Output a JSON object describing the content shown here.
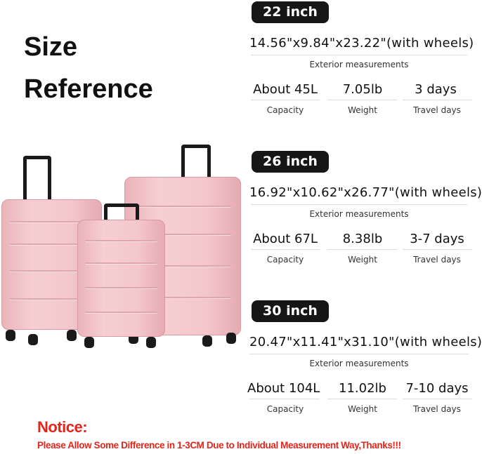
{
  "heading": {
    "line1": "Size",
    "line2": "Reference"
  },
  "sizes": [
    {
      "label": "22 inch",
      "dims": "14.56\"x9.84\"x23.22\"(with wheels)",
      "dims_caption": "Exterior measurements",
      "capacity": "About 45L",
      "weight": "7.05lb",
      "travel": "3 days",
      "capacity_label": "Capacity",
      "weight_label": "Weight",
      "travel_label": "Travel days"
    },
    {
      "label": "26 inch",
      "dims": "16.92\"x10.62\"x26.77\"(with wheels)",
      "dims_caption": "Exterior measurements",
      "capacity": "About 67L",
      "weight": "8.38lb",
      "travel": "3-7 days",
      "capacity_label": "Capacity",
      "weight_label": "Weight",
      "travel_label": "Travel days"
    },
    {
      "label": "30 inch",
      "dims": "20.47\"x11.41\"x31.10\"(with wheels)",
      "dims_caption": "Exterior measurements",
      "capacity": "About  104L",
      "weight": "11.02lb",
      "travel": "7-10 days",
      "capacity_label": "Capacity",
      "weight_label": "Weight",
      "travel_label": "Travel days"
    }
  ],
  "notice": {
    "title": "Notice:",
    "text": "Please Allow Some Difference in 1-3CM Due to Individual Measurement Way,Thanks!!!"
  },
  "colors": {
    "luggage": "#f3c7cc",
    "notice": "#e2261b",
    "pill": "#161616"
  }
}
